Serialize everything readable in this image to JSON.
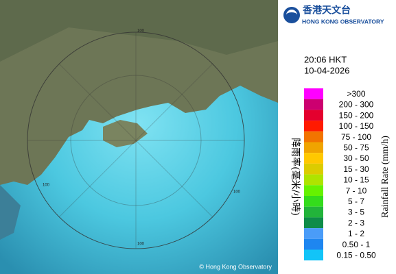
{
  "logo": {
    "chinese": "香港天文台",
    "english": "HONG KONG OBSERVATORY"
  },
  "time": "20:06 HKT",
  "date": "10-04-2026",
  "map": {
    "range_labels": [
      "100",
      "100",
      "100",
      "100"
    ],
    "copyright": "© Hong Kong Observatory"
  },
  "legend": {
    "title_chinese": "降雨率(毫米/小時)",
    "title_english": "Rainfall Rate (mm/h)",
    "items": [
      {
        "label": ">300",
        "color": "#ff00ff"
      },
      {
        "label": "200 - 300",
        "color": "#cc0070"
      },
      {
        "label": "150 - 200",
        "color": "#e4002e"
      },
      {
        "label": "100 - 150",
        "color": "#ff1a00"
      },
      {
        "label": "75 - 100",
        "color": "#f27400"
      },
      {
        "label": "50 - 75",
        "color": "#f0a400"
      },
      {
        "label": "30 - 50",
        "color": "#ffc800"
      },
      {
        "label": "15 - 30",
        "color": "#dccc00"
      },
      {
        "label": "10 - 15",
        "color": "#aee400"
      },
      {
        "label": "7 - 10",
        "color": "#66f200"
      },
      {
        "label": "5 - 7",
        "color": "#34dc1c"
      },
      {
        "label": "3 - 5",
        "color": "#22b43a"
      },
      {
        "label": "2 - 3",
        "color": "#0e8c48"
      },
      {
        "label": "1 - 2",
        "color": "#4a9cf8"
      },
      {
        "label": "0.50 - 1",
        "color": "#1e86f0"
      },
      {
        "label": "0.15 - 0.50",
        "color": "#12c4f8"
      }
    ]
  }
}
